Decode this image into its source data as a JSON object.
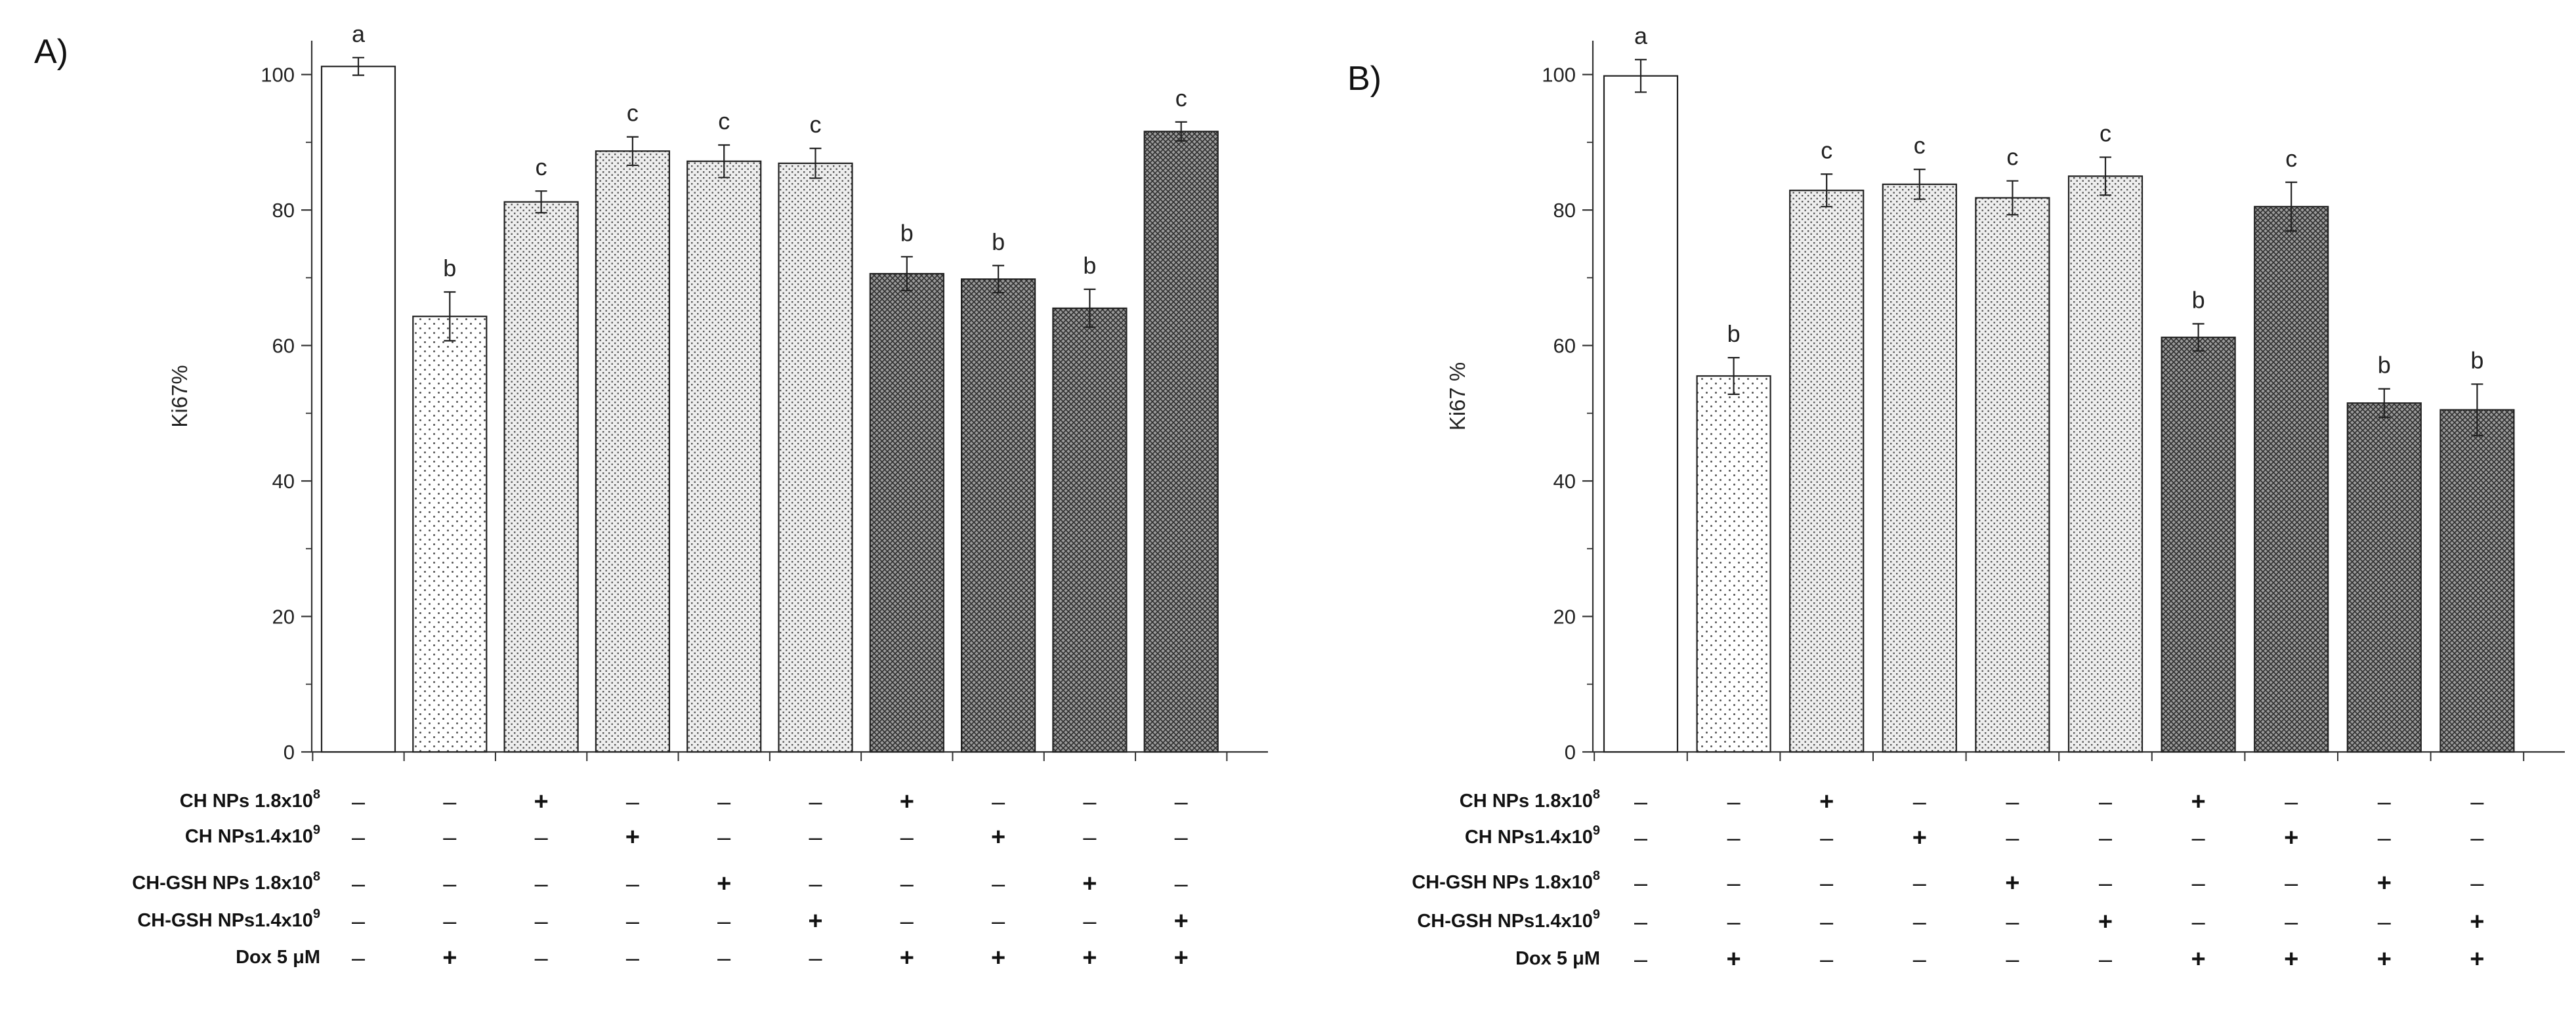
{
  "chart_data": [
    {
      "panel_label": "A)",
      "type": "bar",
      "ylabel": "Ki67%",
      "ylim": [
        0,
        105
      ],
      "yticks": [
        "0",
        "20",
        "40",
        "60",
        "80",
        "100"
      ],
      "values": [
        101.2,
        64.3,
        81.2,
        88.7,
        87.2,
        86.9,
        70.6,
        69.8,
        65.5,
        91.6
      ],
      "errors": [
        1.3,
        3.6,
        1.6,
        2.1,
        2.4,
        2.2,
        2.5,
        2.0,
        2.8,
        1.4
      ],
      "letters": [
        "a",
        "b",
        "c",
        "c",
        "c",
        "c",
        "b",
        "b",
        "b",
        "c"
      ],
      "patterns": [
        "white",
        "sparse",
        "medium",
        "medium",
        "medium",
        "medium",
        "dense",
        "dense",
        "dense",
        "dense"
      ],
      "treatments": [
        {
          "label": "CH NPs 1.8x10",
          "sup": "8",
          "marks": [
            "–",
            "–",
            "+",
            "–",
            "–",
            "–",
            "+",
            "–",
            "–",
            "–"
          ]
        },
        {
          "label": "CH NPs1.4x10",
          "sup": "9",
          "marks": [
            "–",
            "–",
            "–",
            "+",
            "–",
            "–",
            "–",
            "+",
            "–",
            "–"
          ]
        },
        {
          "label": "CH-GSH NPs 1.8x10",
          "sup": "8",
          "marks": [
            "–",
            "–",
            "–",
            "–",
            "+",
            "–",
            "–",
            "–",
            "+",
            "–"
          ]
        },
        {
          "label": "CH-GSH NPs1.4x10",
          "sup": "9",
          "marks": [
            "–",
            "–",
            "–",
            "–",
            "–",
            "+",
            "–",
            "–",
            "–",
            "+"
          ]
        },
        {
          "label": "Dox 5 μM",
          "sup": "",
          "marks": [
            "–",
            "+",
            "–",
            "–",
            "–",
            "–",
            "+",
            "+",
            "+",
            "+"
          ]
        }
      ]
    },
    {
      "panel_label": "B)",
      "type": "bar",
      "ylabel": "Ki67 %",
      "ylim": [
        0,
        105
      ],
      "yticks": [
        "0",
        "20",
        "40",
        "60",
        "80",
        "100"
      ],
      "values": [
        99.8,
        55.5,
        82.9,
        83.8,
        81.8,
        85.0,
        61.2,
        80.5,
        51.5,
        50.5
      ],
      "errors": [
        2.4,
        2.7,
        2.4,
        2.2,
        2.5,
        2.8,
        2.0,
        3.6,
        2.1,
        3.8
      ],
      "letters": [
        "a",
        "b",
        "c",
        "c",
        "c",
        "c",
        "b",
        "c",
        "b",
        "b"
      ],
      "patterns": [
        "white",
        "sparse",
        "medium",
        "medium",
        "medium",
        "medium",
        "dense",
        "dense",
        "dense",
        "dense"
      ],
      "treatments": [
        {
          "label": "CH NPs 1.8x10",
          "sup": "8",
          "marks": [
            "–",
            "–",
            "+",
            "–",
            "–",
            "–",
            "+",
            "–",
            "–",
            "–"
          ]
        },
        {
          "label": "CH NPs1.4x10",
          "sup": "9",
          "marks": [
            "–",
            "–",
            "–",
            "+",
            "–",
            "–",
            "–",
            "+",
            "–",
            "–"
          ]
        },
        {
          "label": "CH-GSH NPs 1.8x10",
          "sup": "8",
          "marks": [
            "–",
            "–",
            "–",
            "–",
            "+",
            "–",
            "–",
            "–",
            "+",
            "–"
          ]
        },
        {
          "label": "CH-GSH NPs1.4x10",
          "sup": "9",
          "marks": [
            "–",
            "–",
            "–",
            "–",
            "–",
            "+",
            "–",
            "–",
            "–",
            "+"
          ]
        },
        {
          "label": "Dox 5 μM",
          "sup": "",
          "marks": [
            "–",
            "+",
            "–",
            "–",
            "–",
            "–",
            "+",
            "+",
            "+",
            "+"
          ]
        }
      ]
    }
  ]
}
